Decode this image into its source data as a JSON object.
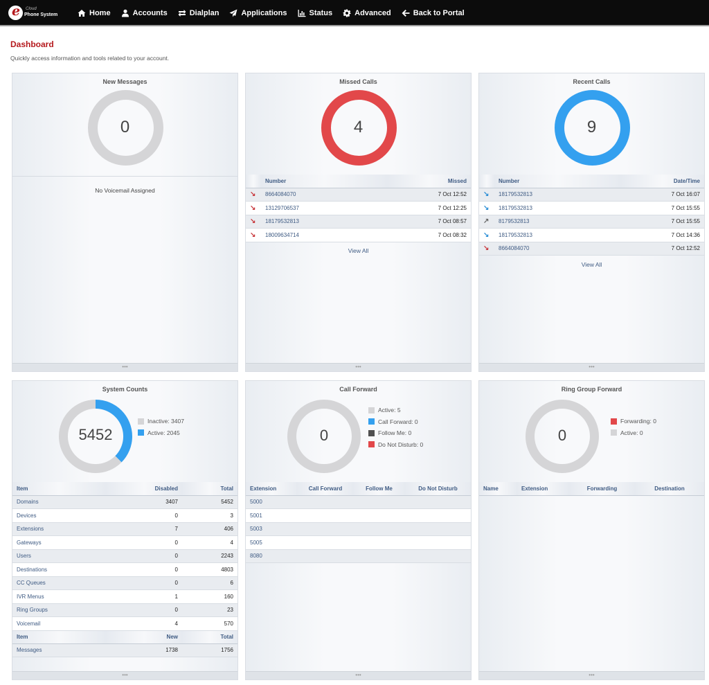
{
  "nav": {
    "logo_top": "Cloud",
    "logo_bottom": "Phone System",
    "items": [
      {
        "label": "Home",
        "icon": "home-icon"
      },
      {
        "label": "Accounts",
        "icon": "user-icon"
      },
      {
        "label": "Dialplan",
        "icon": "exchange-icon"
      },
      {
        "label": "Applications",
        "icon": "paper-plane-icon"
      },
      {
        "label": "Status",
        "icon": "chart-icon"
      },
      {
        "label": "Advanced",
        "icon": "gear-icon"
      },
      {
        "label": "Back to Portal",
        "icon": "arrow-left-icon"
      }
    ]
  },
  "page": {
    "title": "Dashboard",
    "subtitle": "Quickly access information and tools related to your account."
  },
  "new_messages": {
    "title": "New Messages",
    "count": "0",
    "message": "No Voicemail Assigned"
  },
  "missed_calls": {
    "title": "Missed Calls",
    "count": "4",
    "col_number": "Number",
    "col_missed": "Missed",
    "rows": [
      {
        "number": "8664084070",
        "time": "7 Oct 12:52"
      },
      {
        "number": "13129706537",
        "time": "7 Oct 12:25"
      },
      {
        "number": "18179532813",
        "time": "7 Oct 08:57"
      },
      {
        "number": "18009634714",
        "time": "7 Oct 08:32"
      }
    ],
    "view_all": "View All"
  },
  "recent_calls": {
    "title": "Recent Calls",
    "count": "9",
    "col_number": "Number",
    "col_datetime": "Date/Time",
    "rows": [
      {
        "number": "18179532813",
        "time": "7 Oct 16:07",
        "direction": "inbound"
      },
      {
        "number": "18179532813",
        "time": "7 Oct 15:55",
        "direction": "inbound"
      },
      {
        "number": "8179532813",
        "time": "7 Oct 15:55",
        "direction": "outbound"
      },
      {
        "number": "18179532813",
        "time": "7 Oct 14:36",
        "direction": "inbound"
      },
      {
        "number": "8664084070",
        "time": "7 Oct 12:52",
        "direction": "missed"
      }
    ],
    "view_all": "View All"
  },
  "system_counts": {
    "title": "System Counts",
    "total": "5452",
    "active_fraction": 0.375,
    "legend": {
      "inactive": "Inactive: 3407",
      "active": "Active: 2045"
    },
    "headers": {
      "item": "Item",
      "disabled": "Disabled",
      "total": "Total"
    },
    "rows": [
      {
        "item": "Domains",
        "disabled": "3407",
        "total": "5452"
      },
      {
        "item": "Devices",
        "disabled": "0",
        "total": "3"
      },
      {
        "item": "Extensions",
        "disabled": "7",
        "total": "406"
      },
      {
        "item": "Gateways",
        "disabled": "0",
        "total": "4"
      },
      {
        "item": "Users",
        "disabled": "0",
        "total": "2243"
      },
      {
        "item": "Destinations",
        "disabled": "0",
        "total": "4803"
      },
      {
        "item": "CC Queues",
        "disabled": "0",
        "total": "6"
      },
      {
        "item": "IVR Menus",
        "disabled": "1",
        "total": "160"
      },
      {
        "item": "Ring Groups",
        "disabled": "0",
        "total": "23"
      },
      {
        "item": "Voicemail",
        "disabled": "4",
        "total": "570"
      }
    ],
    "headers2": {
      "item": "Item",
      "new": "New",
      "total": "Total"
    },
    "rows2": [
      {
        "item": "Messages",
        "new": "1738",
        "total": "1756"
      }
    ]
  },
  "call_forward": {
    "title": "Call Forward",
    "count": "0",
    "legend": {
      "active": "Active: 5",
      "call_forward": "Call Forward: 0",
      "follow_me": "Follow Me: 0",
      "dnd": "Do Not Disturb: 0"
    },
    "headers": {
      "extension": "Extension",
      "call_forward": "Call Forward",
      "follow_me": "Follow Me",
      "dnd": "Do Not Disturb"
    },
    "rows": [
      "5000",
      "5001",
      "5003",
      "5005",
      "8080"
    ]
  },
  "ring_group_forward": {
    "title": "Ring Group Forward",
    "count": "0",
    "legend": {
      "forwarding": "Forwarding: 0",
      "active": "Active: 0"
    },
    "headers": {
      "name": "Name",
      "extension": "Extension",
      "forwarding": "Forwarding",
      "destination": "Destination"
    }
  },
  "panel_footer": "•••",
  "colors": {
    "accent_red": "#b5191d",
    "donut_gray": "#d5d5d7",
    "donut_red": "#e2484a",
    "donut_blue": "#34a0ef",
    "legend_dark": "#505050",
    "link_blue": "#3f5b83"
  }
}
